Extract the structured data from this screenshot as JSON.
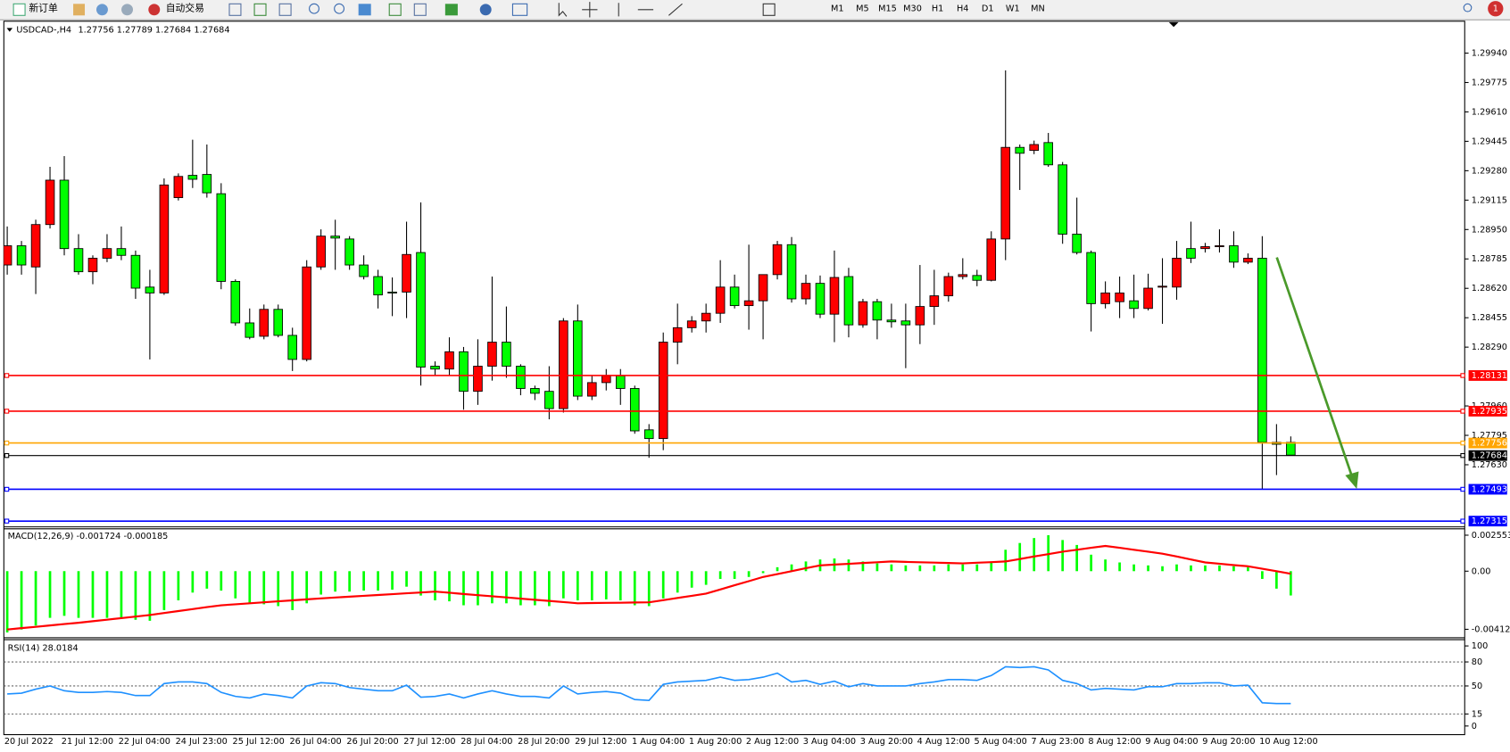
{
  "toolbar": {
    "new_order": "新订单",
    "auto_trading": "自动交易",
    "timeframes": [
      "M1",
      "M5",
      "M15",
      "M30",
      "H1",
      "H4",
      "D1",
      "W1",
      "MN"
    ],
    "notifications": "1"
  },
  "chart_data": [
    {
      "type": "candlestick",
      "title": "USDCAD-,H4",
      "categories": [
        "20 Jul 2022",
        null,
        null,
        null,
        "21 Jul 12:00",
        null,
        null,
        null,
        "22 Jul 04:00",
        null,
        null,
        null,
        "24 Jul 23:00",
        null,
        null,
        null,
        "25 Jul 12:00",
        null,
        null,
        null,
        "26 Jul 04:00",
        null,
        null,
        null,
        "26 Jul 20:00",
        null,
        null,
        null,
        "27 Jul 12:00",
        null,
        null,
        null,
        "28 Jul 04:00",
        null,
        null,
        null,
        "28 Jul 20:00",
        null,
        null,
        null,
        "29 Jul 12:00",
        null,
        null,
        null,
        "1 Aug 04:00",
        null,
        null,
        null,
        "1 Aug 20:00",
        null,
        null,
        null,
        "2 Aug 12:00",
        null,
        null,
        null,
        "3 Aug 04:00",
        null,
        null,
        null,
        "3 Aug 20:00",
        null,
        null,
        null,
        "4 Aug 12:00",
        null,
        null,
        null,
        "5 Aug 04:00",
        null,
        null,
        null,
        "7 Aug 23:00",
        null,
        null,
        null,
        "8 Aug 12:00",
        null,
        null,
        null,
        "9 Aug 04:00",
        null,
        null,
        null,
        "9 Aug 20:00",
        null,
        null,
        null,
        "10 Aug 12:00",
        null,
        null
      ],
      "open": [
        1.28751,
        1.28859,
        1.2874,
        1.28978,
        1.29227,
        1.28843,
        1.28713,
        1.28789,
        1.28843,
        1.28805,
        1.28627,
        1.28594,
        1.29129,
        1.29254,
        1.29259,
        1.29151,
        1.28659,
        1.28426,
        1.28351,
        1.28502,
        1.28356,
        1.28221,
        1.2874,
        1.28913,
        1.28897,
        1.28751,
        1.28686,
        1.28599,
        1.28599,
        1.28821,
        1.28183,
        1.28167,
        1.28264,
        1.28042,
        1.28183,
        1.28318,
        1.28183,
        1.28058,
        1.28042,
        1.27945,
        1.28437,
        1.28015,
        1.28091,
        1.28129,
        1.28058,
        1.27826,
        1.27777,
        1.28318,
        1.28399,
        1.28437,
        1.2848,
        1.28627,
        1.28523,
        1.2855,
        1.28697,
        1.28865,
        1.28561,
        1.28648,
        1.28475,
        1.28686,
        1.28415,
        1.28545,
        1.28442,
        1.28437,
        1.28415,
        1.28518,
        1.28578,
        1.28686,
        1.28692,
        1.28665,
        1.28897,
        1.29411,
        1.29394,
        1.29438,
        1.29313,
        1.28924,
        1.28821,
        1.28534,
        1.28545,
        1.2855,
        1.28507,
        1.28627,
        1.28627,
        1.28843,
        1.28843,
        1.28854,
        1.28859,
        1.28767,
        1.28789,
        1.27756,
        1.27756
      ],
      "high": [
        1.28967,
        1.28886,
        1.29005,
        1.29302,
        1.29362,
        1.28924,
        1.28805,
        1.28924,
        1.28967,
        1.28832,
        1.28724,
        1.29237,
        1.29265,
        1.29454,
        1.29427,
        1.2921,
        1.2867,
        1.28507,
        1.28529,
        1.28529,
        1.28399,
        1.28778,
        1.28951,
        1.29005,
        1.28913,
        1.28805,
        1.28724,
        1.28681,
        1.28994,
        1.29102,
        1.2821,
        1.28345,
        1.28291,
        1.28334,
        1.28686,
        1.28518,
        1.28194,
        1.28074,
        1.28183,
        1.28453,
        1.28529,
        1.28129,
        1.28167,
        1.28167,
        1.28074,
        1.27858,
        1.28372,
        1.28534,
        1.28464,
        1.28534,
        1.28778,
        1.28697,
        1.28865,
        1.28697,
        1.28886,
        1.28908,
        1.28697,
        1.28692,
        1.28832,
        1.28735,
        1.28561,
        1.28561,
        1.28534,
        1.28534,
        1.28751,
        1.28724,
        1.28708,
        1.28789,
        1.28724,
        1.2894,
        1.29843,
        1.29427,
        1.29449,
        1.29492,
        1.29329,
        1.29129,
        1.28832,
        1.28659,
        1.28686,
        1.28697,
        1.28702,
        1.28789,
        1.28886,
        1.28994,
        1.28875,
        1.28951,
        1.2894,
        1.28816,
        1.28913,
        1.27858,
        1.27789
      ],
      "low": [
        1.28697,
        1.28697,
        1.28588,
        1.28956,
        1.28805,
        1.28697,
        1.28643,
        1.28767,
        1.28778,
        1.28561,
        1.28221,
        1.28583,
        1.29113,
        1.29183,
        1.29129,
        1.28615,
        1.2841,
        1.28334,
        1.28334,
        1.28345,
        1.28156,
        1.2821,
        1.28724,
        1.28724,
        1.28724,
        1.2867,
        1.28507,
        1.28464,
        1.28453,
        1.28074,
        1.28129,
        1.28129,
        1.27939,
        1.27966,
        1.28102,
        1.28118,
        1.2802,
        1.27993,
        1.27885,
        1.27923,
        1.27993,
        1.27993,
        1.28047,
        1.27966,
        1.27804,
        1.27669,
        1.27712,
        1.28194,
        1.28372,
        1.28372,
        1.28426,
        1.28507,
        1.28388,
        1.28334,
        1.2867,
        1.2854,
        1.28529,
        1.28453,
        1.28318,
        1.28345,
        1.28399,
        1.28334,
        1.28399,
        1.28172,
        1.28307,
        1.28415,
        1.28545,
        1.2867,
        1.28632,
        1.28659,
        1.28778,
        1.29172,
        1.29373,
        1.29302,
        1.2887,
        1.2881,
        1.28378,
        1.28507,
        1.28453,
        1.28453,
        1.28496,
        1.28421,
        1.28556,
        1.28762,
        1.28821,
        1.28821,
        1.28735,
        1.28756,
        1.27491,
        1.27572,
        1.27684
      ],
      "close": [
        1.28859,
        1.28751,
        1.28978,
        1.29227,
        1.28843,
        1.28713,
        1.28789,
        1.28843,
        1.28805,
        1.28621,
        1.28594,
        1.292,
        1.29248,
        1.29232,
        1.29156,
        1.28659,
        1.28426,
        1.28345,
        1.28502,
        1.28356,
        1.28221,
        1.2874,
        1.28913,
        1.28902,
        1.28751,
        1.28686,
        1.28583,
        1.28594,
        1.2881,
        1.28178,
        1.28167,
        1.28264,
        1.28042,
        1.28183,
        1.28318,
        1.28183,
        1.28058,
        1.28031,
        1.27945,
        1.28437,
        1.28015,
        1.28091,
        1.28129,
        1.28058,
        1.2782,
        1.27777,
        1.28318,
        1.28399,
        1.28437,
        1.2848,
        1.28627,
        1.28523,
        1.2855,
        1.28697,
        1.28865,
        1.28561,
        1.28648,
        1.28475,
        1.28681,
        1.28415,
        1.28545,
        1.28442,
        1.28432,
        1.28415,
        1.28518,
        1.28578,
        1.28686,
        1.28697,
        1.28665,
        1.28897,
        1.29411,
        1.29378,
        1.29427,
        1.29313,
        1.28924,
        1.28821,
        1.28534,
        1.28594,
        1.28594,
        1.28507,
        1.28621,
        1.28632,
        1.28789,
        1.28789,
        1.28854,
        1.28859,
        1.28767,
        1.28789,
        1.27756,
        1.27745,
        1.27684
      ],
      "up_color": "#ff0000",
      "down_color": "#00ff00",
      "ylim": [
        1.27284,
        1.30119
      ],
      "yticks": [
        {
          "value": 1.2994,
          "label": "1.29940"
        },
        {
          "value": 1.29775,
          "label": "1.29775"
        },
        {
          "value": 1.2961,
          "label": "1.29610"
        },
        {
          "value": 1.29445,
          "label": "1.29445"
        },
        {
          "value": 1.2928,
          "label": "1.29280"
        },
        {
          "value": 1.29115,
          "label": "1.29115"
        },
        {
          "value": 1.2895,
          "label": "1.28950"
        },
        {
          "value": 1.28785,
          "label": "1.28785"
        },
        {
          "value": 1.2862,
          "label": "1.28620"
        },
        {
          "value": 1.28455,
          "label": "1.28455"
        },
        {
          "value": 1.2829,
          "label": "1.28290"
        },
        {
          "value": 1.2796,
          "label": "1.27960"
        },
        {
          "value": 1.27795,
          "label": "1.27795"
        },
        {
          "value": 1.2763,
          "label": "1.27630"
        }
      ],
      "levels": [
        {
          "value": 1.28131,
          "color": "#ff0000"
        },
        {
          "value": 1.27935,
          "color": "#ff0000"
        },
        {
          "value": 1.27756,
          "color": "#ffa500"
        },
        {
          "value": 1.27684,
          "color": "#000000"
        },
        {
          "value": 1.27493,
          "color": "#0000ff"
        },
        {
          "value": 1.27315,
          "color": "#0000ff"
        }
      ]
    },
    {
      "type": "macd",
      "title": "MACD(12,26,9)",
      "bars": {
        "color": "#00ff00",
        "values": [
          -0.00435,
          -0.00414,
          -0.00386,
          -0.00331,
          -0.00317,
          -0.00331,
          -0.00331,
          -0.00331,
          -0.00331,
          -0.00345,
          -0.00352,
          -0.00276,
          -0.00207,
          -0.00152,
          -0.00124,
          -0.00138,
          -0.00193,
          -0.00228,
          -0.00235,
          -0.00248,
          -0.00276,
          -0.00228,
          -0.00166,
          -0.00145,
          -0.00145,
          -0.00138,
          -0.00138,
          -0.00131,
          -0.0011,
          -0.00173,
          -0.00207,
          -0.00214,
          -0.00242,
          -0.00242,
          -0.00228,
          -0.00228,
          -0.00242,
          -0.00242,
          -0.00248,
          -0.00193,
          -0.00207,
          -0.00207,
          -0.002,
          -0.00207,
          -0.00242,
          -0.00248,
          -0.00193,
          -0.00152,
          -0.00117,
          -0.00097,
          -0.00055,
          -0.00055,
          -0.00041,
          -0.00014,
          0.00028,
          0.00048,
          0.00069,
          0.00083,
          0.0009,
          0.00083,
          0.00069,
          0.00055,
          0.00048,
          0.00041,
          0.00041,
          0.00041,
          0.00048,
          0.00048,
          0.00048,
          0.00069,
          0.00152,
          0.002,
          0.00235,
          0.00255,
          0.00221,
          0.00186,
          0.00117,
          0.00083,
          0.00062,
          0.00048,
          0.00041,
          0.00035,
          0.00048,
          0.00041,
          0.00041,
          0.00041,
          0.00035,
          0.00028,
          -0.00055,
          -0.00124,
          -0.001724
        ]
      },
      "line": {
        "color": "#ff0000",
        "values": [
          -0.00414,
          -0.00404,
          -0.00395,
          -0.00385,
          -0.00375,
          -0.00366,
          -0.00355,
          -0.00344,
          -0.00333,
          -0.00322,
          -0.00311,
          -0.00297,
          -0.00283,
          -0.00269,
          -0.00255,
          -0.00242,
          -0.00235,
          -0.00228,
          -0.00221,
          -0.00214,
          -0.00207,
          -0.002,
          -0.00193,
          -0.00187,
          -0.00181,
          -0.00175,
          -0.00169,
          -0.00163,
          -0.00157,
          -0.00151,
          -0.00145,
          -0.00153,
          -0.00162,
          -0.0017,
          -0.00178,
          -0.00186,
          -0.00195,
          -0.00203,
          -0.00211,
          -0.00219,
          -0.00228,
          -0.00226,
          -0.00225,
          -0.00224,
          -0.00222,
          -0.00221,
          -0.00206,
          -0.0019,
          -0.00175,
          -0.00159,
          -0.0013,
          -0.001,
          -0.00071,
          -0.00041,
          -0.00021,
          0,
          0.00021,
          0.00041,
          0.00047,
          0.00052,
          0.00058,
          0.00063,
          0.00069,
          0.00066,
          0.00063,
          0.00061,
          0.00058,
          0.00055,
          0.0006,
          0.00064,
          0.00069,
          0.00086,
          0.00104,
          0.00121,
          0.00138,
          0.00152,
          0.00166,
          0.00179,
          0.00166,
          0.00152,
          0.00138,
          0.00124,
          0.00104,
          0.00083,
          0.00062,
          0.00053,
          0.00043,
          0.00035,
          0.00017,
          0,
          -0.000185
        ]
      },
      "ylim": [
        -0.00469,
        0.00304
      ],
      "yticks": [
        0.002553,
        {
          "value": 0,
          "label": "0.00"
        },
        -0.004124
      ]
    },
    {
      "type": "rsi",
      "title": "RSI(14)",
      "color": "#1e90ff",
      "values": [
        40,
        41,
        46,
        50,
        44,
        42,
        42,
        43,
        42,
        38,
        38,
        53,
        55,
        55,
        53,
        42,
        37,
        35,
        40,
        38,
        35,
        50,
        54,
        53,
        48,
        46,
        44,
        44,
        51,
        36,
        37,
        40,
        35,
        40,
        44,
        40,
        37,
        37,
        35,
        50,
        40,
        42,
        43,
        41,
        33,
        32,
        52,
        55,
        56,
        57,
        61,
        57,
        58,
        61,
        66,
        55,
        57,
        52,
        56,
        49,
        53,
        50,
        50,
        50,
        53,
        55,
        58,
        58,
        57,
        63,
        74,
        73,
        74,
        70,
        57,
        53,
        45,
        47,
        46,
        45,
        49,
        49,
        53,
        53,
        54,
        54,
        50,
        51,
        29,
        28,
        28.0184
      ],
      "ylim": [
        -8.4,
        108.4
      ],
      "yticks": [
        100,
        80,
        50,
        15,
        0
      ],
      "levels": [
        80,
        50,
        15
      ]
    }
  ]
}
